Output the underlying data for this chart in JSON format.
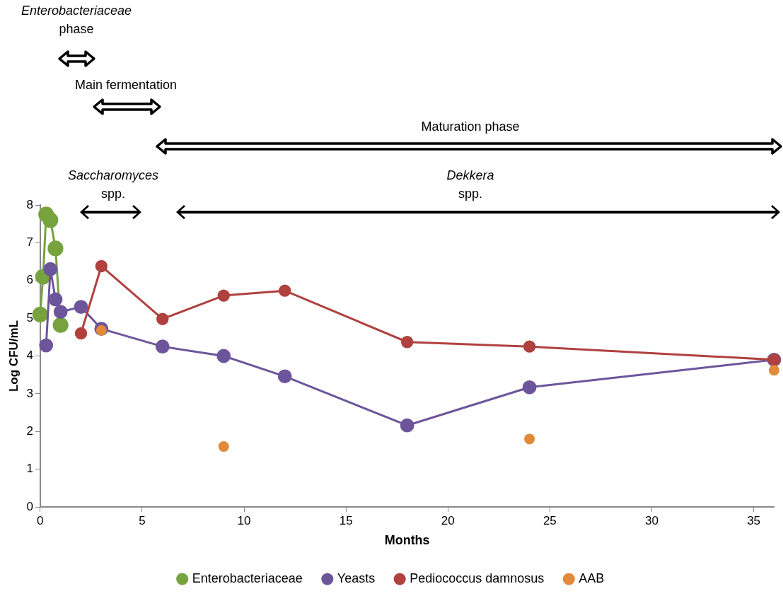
{
  "chart_data": {
    "type": "line",
    "xlabel": "Months",
    "ylabel": "Log CFU/mL",
    "xlim": [
      0,
      36
    ],
    "xticks": [
      0,
      5,
      10,
      15,
      20,
      25,
      30,
      35
    ],
    "ylim": [
      0,
      8
    ],
    "yticks": [
      0,
      1,
      2,
      3,
      4,
      5,
      6,
      7,
      8
    ],
    "grid": false,
    "legend": "bottom",
    "marker": "circle",
    "line_style": "solid",
    "annotations": [
      "Enterobacteriaceae phase",
      "Main fermentation",
      "Maturation phase",
      "Saccharomyces spp.",
      "Dekkera spp."
    ],
    "series": [
      {
        "name": "Enterobacteriaceae",
        "color": "#77a33f",
        "x": [
          0,
          0.14,
          0.29,
          0.5,
          0.75,
          1
        ],
        "values": [
          5.1,
          6.1,
          7.75,
          7.6,
          6.85,
          4.82
        ]
      },
      {
        "name": "Yeasts",
        "color": "#6d559b",
        "x": [
          0.29,
          0.5,
          0.75,
          1,
          2,
          3,
          6,
          9,
          12,
          18,
          24,
          36
        ],
        "values": [
          4.28,
          6.3,
          5.5,
          5.17,
          5.3,
          4.72,
          4.25,
          4.0,
          3.46,
          2.16,
          3.17,
          3.9
        ]
      },
      {
        "name": "Pediococcus damnosus",
        "color": "#b0413e",
        "x": [
          2,
          3,
          6,
          9,
          12,
          18,
          24,
          36
        ],
        "values": [
          4.6,
          6.38,
          4.98,
          5.6,
          5.73,
          4.37,
          4.25,
          3.9
        ]
      },
      {
        "name": "AAB",
        "type": "scatter",
        "color": "#e08a3a",
        "x": [
          3,
          9,
          24,
          36
        ],
        "values": [
          4.68,
          1.6,
          1.8,
          3.62
        ]
      }
    ]
  }
}
